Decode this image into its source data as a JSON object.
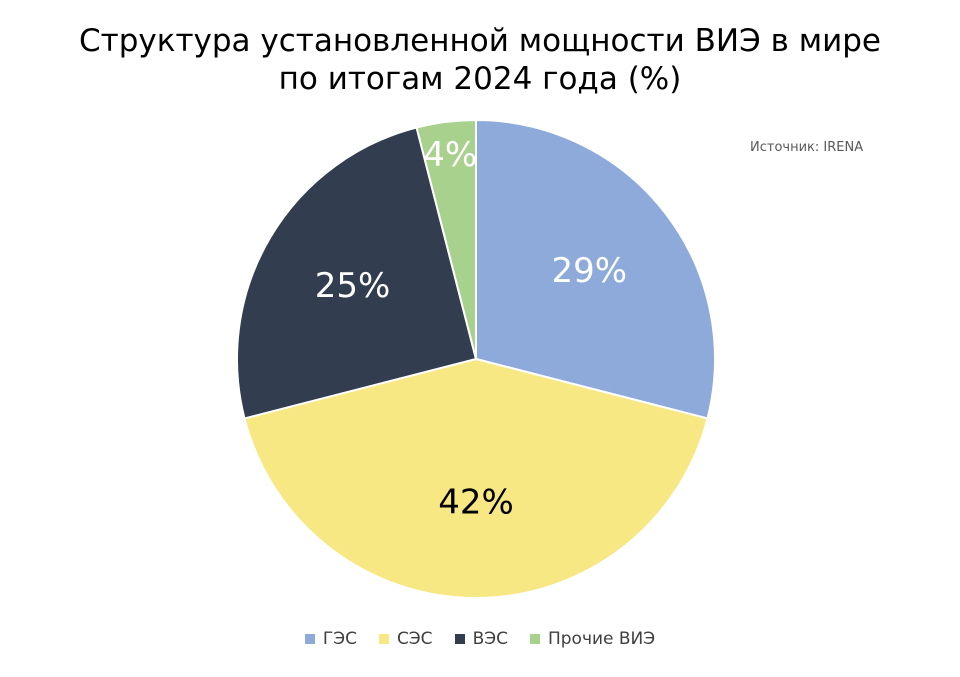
{
  "chart_data": {
    "type": "pie",
    "title_lines": [
      "Структура установленной мощности ВИЭ в мире",
      "по итогам 2024 года (%)"
    ],
    "source": "Источник: IRENA",
    "legend_position": "bottom",
    "slices": [
      {
        "name": "ГЭС",
        "value": 29,
        "label": "29%",
        "color": "#8EAADB",
        "label_color": "#FFFFFF"
      },
      {
        "name": "СЭС",
        "value": 42,
        "label": "42%",
        "color": "#F7E884",
        "label_color": "#000000"
      },
      {
        "name": "ВЭС",
        "value": 25,
        "label": "25%",
        "color": "#323E50",
        "label_color": "#FFFFFF"
      },
      {
        "name": "Прочие ВИЭ",
        "value": 4,
        "label": "4%",
        "color": "#A9D18E",
        "label_color": "#FFFFFF"
      }
    ]
  }
}
